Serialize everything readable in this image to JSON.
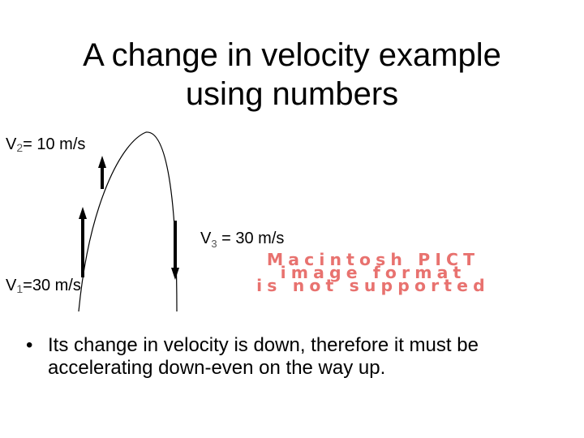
{
  "slide": {
    "title_line1": "A change in velocity example",
    "title_line2": "using numbers"
  },
  "labels": {
    "v2_letter": "V",
    "v2_sub": "2",
    "v2_value": "= 10 m/s",
    "v1_letter": "V",
    "v1_sub": "1",
    "v1_value": "=30 m/s",
    "v3_letter": "V",
    "v3_sub": "3",
    "v3_value": " = 30 m/s"
  },
  "placeholder": {
    "line1": "Macintosh PICT",
    "line2": "image format",
    "line3": "is not supported",
    "color": "#e8726f"
  },
  "bullet": {
    "symbol": "•",
    "text": "Its change in velocity is down, therefore it must be accelerating down-even on the way up."
  }
}
